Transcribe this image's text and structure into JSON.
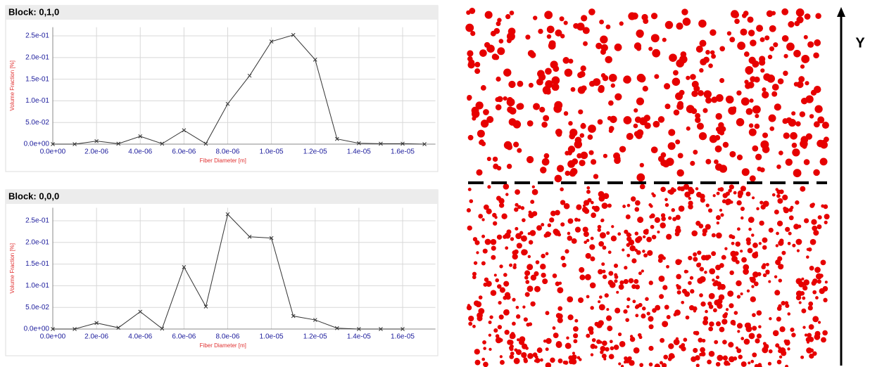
{
  "chart_data": [
    {
      "type": "line",
      "title": "Block: 0,1,0",
      "xlabel": "Fiber Diameter [m]",
      "ylabel": "Volume Fraction [%]",
      "x": [
        0,
        1e-06,
        2e-06,
        3e-06,
        4e-06,
        5e-06,
        6e-06,
        7e-06,
        8e-06,
        9e-06,
        1e-05,
        1.1e-05,
        1.2e-05,
        1.3e-05,
        1.4e-05,
        1.5e-05,
        1.6e-05,
        1.7e-05
      ],
      "series": [
        {
          "color": "#333333",
          "values": [
            0,
            0,
            0.007,
            0.001,
            0.018,
            0.001,
            0.032,
            0.001,
            0.093,
            0.158,
            0.237,
            0.252,
            0.195,
            0.012,
            0.002,
            0.001,
            0.001,
            0
          ]
        }
      ],
      "xlim": [
        0,
        1.75e-05
      ],
      "ylim": [
        0,
        0.27
      ],
      "xticks": [
        {
          "value": 0,
          "label": "0.0e+00"
        },
        {
          "value": 2e-06,
          "label": "2.0e-06"
        },
        {
          "value": 4e-06,
          "label": "4.0e-06"
        },
        {
          "value": 6e-06,
          "label": "6.0e-06"
        },
        {
          "value": 8e-06,
          "label": "8.0e-06"
        },
        {
          "value": 1e-05,
          "label": "1.0e-05"
        },
        {
          "value": 1.2e-05,
          "label": "1.2e-05"
        },
        {
          "value": 1.4e-05,
          "label": "1.4e-05"
        },
        {
          "value": 1.6e-05,
          "label": "1.6e-05"
        }
      ],
      "yticks": [
        {
          "value": 0,
          "label": "0.0e+00"
        },
        {
          "value": 0.05,
          "label": "5.0e-02"
        },
        {
          "value": 0.1,
          "label": "1.0e-01"
        },
        {
          "value": 0.15,
          "label": "1.5e-01"
        },
        {
          "value": 0.2,
          "label": "2.0e-01"
        },
        {
          "value": 0.25,
          "label": "2.5e-01"
        }
      ],
      "grid": true
    },
    {
      "type": "line",
      "title": "Block: 0,0,0",
      "xlabel": "Fiber Diameter [m]",
      "ylabel": "Volume Fraction [%]",
      "x": [
        0,
        1e-06,
        2e-06,
        3e-06,
        4e-06,
        5e-06,
        6e-06,
        7e-06,
        8e-06,
        9e-06,
        1e-05,
        1.1e-05,
        1.2e-05,
        1.3e-05,
        1.4e-05,
        1.5e-05,
        1.6e-05
      ],
      "series": [
        {
          "color": "#333333",
          "values": [
            0,
            0,
            0.014,
            0.003,
            0.04,
            0.001,
            0.143,
            0.052,
            0.265,
            0.213,
            0.21,
            0.03,
            0.021,
            0.002,
            0,
            0,
            0
          ]
        }
      ],
      "xlim": [
        0,
        1.75e-05
      ],
      "ylim": [
        0,
        0.28
      ],
      "xticks": [
        {
          "value": 0,
          "label": "0.0e+00"
        },
        {
          "value": 2e-06,
          "label": "2.0e-06"
        },
        {
          "value": 4e-06,
          "label": "4.0e-06"
        },
        {
          "value": 6e-06,
          "label": "6.0e-06"
        },
        {
          "value": 8e-06,
          "label": "8.0e-06"
        },
        {
          "value": 1e-05,
          "label": "1.0e-05"
        },
        {
          "value": 1.2e-05,
          "label": "1.2e-05"
        },
        {
          "value": 1.4e-05,
          "label": "1.4e-05"
        },
        {
          "value": 1.6e-05,
          "label": "1.6e-05"
        }
      ],
      "yticks": [
        {
          "value": 0,
          "label": "0.0e+00"
        },
        {
          "value": 0.05,
          "label": "5.0e-02"
        },
        {
          "value": 0.1,
          "label": "1.0e-01"
        },
        {
          "value": 0.15,
          "label": "1.5e-01"
        },
        {
          "value": 0.2,
          "label": "2.0e-01"
        },
        {
          "value": 0.25,
          "label": "2.5e-01"
        }
      ],
      "grid": true
    }
  ],
  "figure": {
    "axis_label": "Y"
  }
}
